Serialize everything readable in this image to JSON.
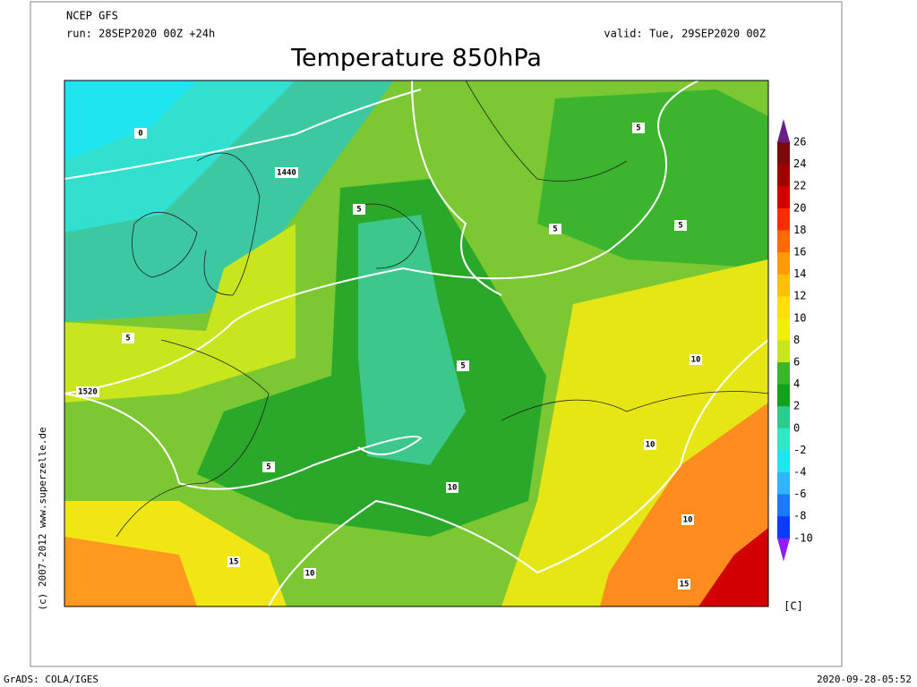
{
  "header": {
    "model": "NCEP GFS",
    "run": "run: 28SEP2020 00Z +24h",
    "valid": "valid: Tue, 29SEP2020 00Z",
    "title": "Temperature 850hPa"
  },
  "map": {
    "contour_labels": [
      "0",
      "1440",
      "5",
      "5",
      "5",
      "5",
      "5",
      "10",
      "1520",
      "5",
      "10",
      "5",
      "10",
      "15",
      "10",
      "10",
      "15"
    ]
  },
  "colorbar": {
    "ticks": [
      26,
      24,
      22,
      20,
      18,
      16,
      14,
      12,
      10,
      8,
      6,
      4,
      2,
      0,
      -2,
      -4,
      -6,
      -8,
      -10
    ],
    "colors": [
      "#7a0a0a",
      "#a00000",
      "#d20000",
      "#ff2a00",
      "#ff6a00",
      "#ff9a00",
      "#ffc000",
      "#ffe000",
      "#f0f000",
      "#c8e61e",
      "#3cb42d",
      "#16a01e",
      "#2dcc8c",
      "#32e6c8",
      "#1ee6f0",
      "#32b4ff",
      "#1e78ff",
      "#0a3cff"
    ],
    "unit": "[C]"
  },
  "footer": {
    "software": "GrADS: COLA/IGES",
    "timestamp": "2020-09-28-05:52",
    "credit": "(c) 2007-2012  www.superzelle.de"
  }
}
